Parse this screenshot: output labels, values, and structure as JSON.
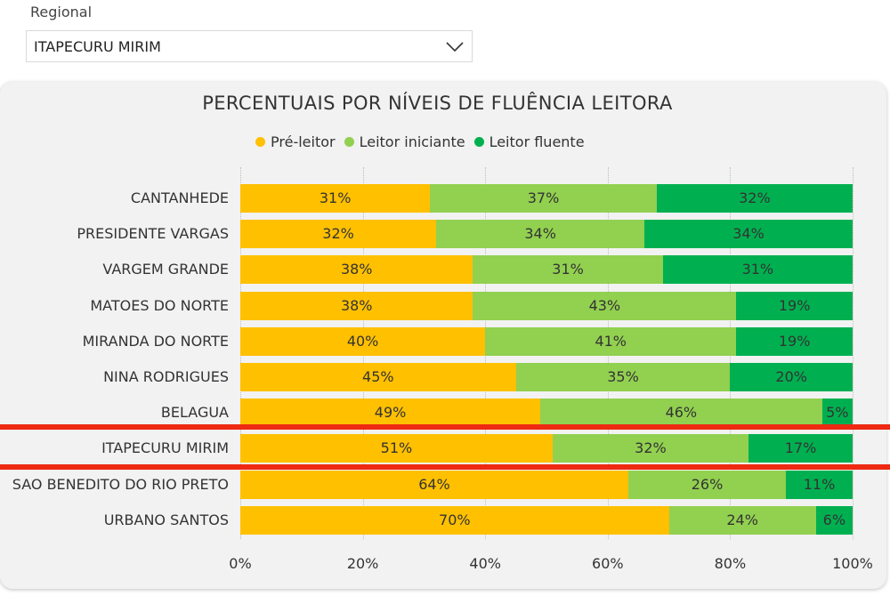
{
  "filter": {
    "label": "Regional",
    "selected": "ITAPECURU MIRIM",
    "chevron_icon": "chevron-down-icon"
  },
  "colors": {
    "pre_leitor": "#FFC000",
    "leitor_iniciante": "#92D050",
    "leitor_fluente": "#00B050",
    "highlight": "#EE2A12"
  },
  "chart_data": {
    "type": "bar",
    "orientation": "horizontal",
    "stacked": "100%",
    "title": "PERCENTUAIS POR NÍVEIS DE FLUÊNCIA LEITORA",
    "legend_position": "top",
    "categories": [
      "CANTANHEDE",
      "PRESIDENTE VARGAS",
      "VARGEM GRANDE",
      "MATOES DO NORTE",
      "MIRANDA DO NORTE",
      "NINA RODRIGUES",
      "BELAGUA",
      "ITAPECURU MIRIM",
      "SAO BENEDITO DO RIO PRETO",
      "URBANO SANTOS"
    ],
    "series": [
      {
        "name": "Pré-leitor",
        "values": [
          31,
          32,
          38,
          38,
          40,
          45,
          49,
          51,
          64,
          70
        ]
      },
      {
        "name": "Leitor iniciante",
        "values": [
          37,
          34,
          31,
          43,
          41,
          35,
          46,
          32,
          26,
          24
        ]
      },
      {
        "name": "Leitor fluente",
        "values": [
          32,
          34,
          31,
          19,
          19,
          20,
          5,
          17,
          11,
          6
        ]
      }
    ],
    "x_ticks": [
      "0%",
      "20%",
      "40%",
      "60%",
      "80%",
      "100%"
    ],
    "xlim": [
      0,
      100
    ],
    "grid": true,
    "highlighted_category": "ITAPECURU MIRIM"
  }
}
